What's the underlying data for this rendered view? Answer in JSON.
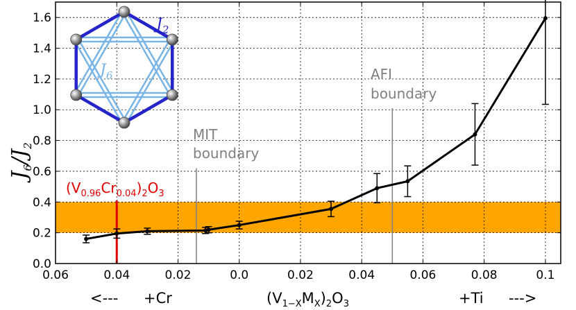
{
  "chart_data": {
    "type": "line",
    "x_axis_display": "reversed-left-of-zero (Cr doping shown as negative x, Ti doping as positive x)",
    "x": [
      -0.05,
      -0.04,
      -0.03,
      -0.011,
      -0.01,
      0.0,
      0.03,
      0.045,
      0.055,
      0.077,
      0.1
    ],
    "values": [
      0.16,
      0.195,
      0.21,
      0.215,
      0.22,
      0.25,
      0.355,
      0.49,
      0.535,
      0.84,
      1.595
    ],
    "errors": [
      0.025,
      0.03,
      0.02,
      0.02,
      0.02,
      0.025,
      0.05,
      0.095,
      0.1,
      0.2,
      0.56
    ],
    "xlim": [
      -0.06,
      0.105
    ],
    "ylim": [
      0.0,
      1.7
    ],
    "xticks": [
      -0.06,
      -0.04,
      -0.02,
      0.0,
      0.02,
      0.04,
      0.06,
      0.08,
      0.1
    ],
    "xtick_labels": [
      "0.06",
      "0.04",
      "0.02",
      "0.0",
      "0.02",
      "0.04",
      "0.06",
      "0.08",
      "0.1"
    ],
    "yticks": [
      0.0,
      0.2,
      0.4,
      0.6,
      0.8,
      1.0,
      1.2,
      1.4,
      1.6
    ],
    "ytick_labels": [
      "0.0",
      "0.2",
      "0.4",
      "0.6",
      "0.8",
      "1.0",
      "1.2",
      "1.4",
      "1.6"
    ],
    "grid": true,
    "band": {
      "y0": 0.2,
      "y1": 0.4,
      "color": "#ffa500"
    },
    "ylabel": {
      "main": "J",
      "sub1": "6",
      "sep": "/",
      "main2": "J",
      "sub2": "2"
    },
    "vlines": [
      {
        "x": -0.014,
        "y0": 0.0,
        "y1": 0.62,
        "color": "#808080",
        "label_line1": "MIT",
        "label_line2": "boundary"
      },
      {
        "x": 0.05,
        "y0": 0.0,
        "y1": 1.01,
        "color": "#808080",
        "label_line1": "AFI",
        "label_line2": "boundary"
      },
      {
        "x": -0.04,
        "y0": 0.0,
        "y1": 0.41,
        "color": "#e00000"
      }
    ],
    "red_annotation": {
      "p1": "(V",
      "s1": "0.96",
      "p2": "Cr",
      "s2": "0.04",
      "p3": ")",
      "s3": "2",
      "p4": "O",
      "s4": "3"
    },
    "bottom_labels": {
      "left_arrow": "<---",
      "left_dopant": "+Cr",
      "formula": {
        "p1": "(V",
        "s1": "1−X",
        "p2": "M",
        "s2": "X",
        "p3": ")",
        "s3": "2",
        "p4": "O",
        "s4": "3"
      },
      "right_dopant": "+Ti",
      "right_arrow": "--->"
    },
    "inset": {
      "label_j2": "J",
      "label_j2_sub": "2",
      "label_j6": "J",
      "label_j6_sub": "6",
      "j2_color": "#2424c8",
      "j6_color": "#78b4e6"
    },
    "line_color": "#000000"
  }
}
